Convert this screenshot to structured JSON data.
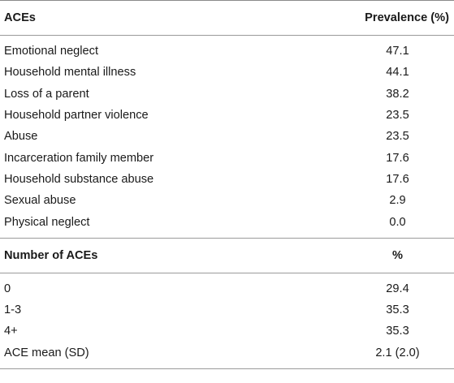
{
  "table": {
    "section1": {
      "header": {
        "label": "ACEs",
        "value": "Prevalence (%)"
      },
      "rows": [
        {
          "label": "Emotional neglect",
          "value": "47.1"
        },
        {
          "label": "Household mental illness",
          "value": "44.1"
        },
        {
          "label": "Loss of a parent",
          "value": "38.2"
        },
        {
          "label": "Household partner violence",
          "value": "23.5"
        },
        {
          "label": "Abuse",
          "value": "23.5"
        },
        {
          "label": "Incarceration family member",
          "value": "17.6"
        },
        {
          "label": "Household substance abuse",
          "value": "17.6"
        },
        {
          "label": "Sexual abuse",
          "value": "2.9"
        },
        {
          "label": "Physical neglect",
          "value": "0.0"
        }
      ]
    },
    "section2": {
      "header": {
        "label": "Number of ACEs",
        "value": "%"
      },
      "rows": [
        {
          "label": "0",
          "value": "29.4"
        },
        {
          "label": "1-3",
          "value": "35.3"
        },
        {
          "label": "4+",
          "value": "35.3"
        },
        {
          "label": "ACE mean (SD)",
          "value": "2.1 (2.0)"
        }
      ]
    }
  }
}
